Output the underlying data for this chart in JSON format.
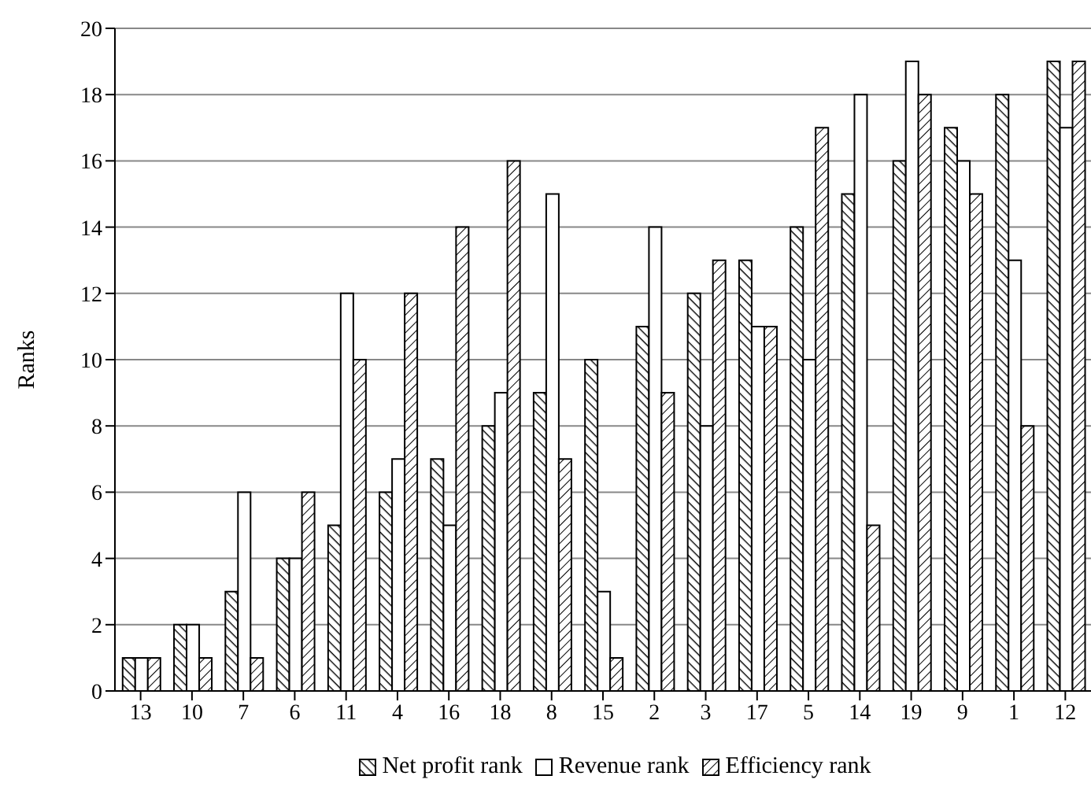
{
  "chart_data": {
    "type": "bar",
    "ylabel": "Ranks",
    "categories": [
      "13",
      "10",
      "7",
      "6",
      "11",
      "4",
      "16",
      "18",
      "8",
      "15",
      "2",
      "3",
      "17",
      "5",
      "14",
      "19",
      "9",
      "1",
      "12"
    ],
    "series": [
      {
        "name": "Net profit rank",
        "color": "#000000",
        "values": [
          1,
          2,
          3,
          4,
          5,
          6,
          7,
          8,
          9,
          10,
          11,
          12,
          13,
          14,
          15,
          16,
          17,
          18,
          19
        ]
      },
      {
        "name": "Revenue rank",
        "color": "#000000",
        "values": [
          1,
          2,
          6,
          4,
          12,
          7,
          5,
          9,
          15,
          3,
          14,
          8,
          11,
          10,
          18,
          19,
          16,
          13,
          17
        ]
      },
      {
        "name": "Efficiency rank",
        "color": "#000000",
        "values": [
          1,
          1,
          1,
          6,
          10,
          12,
          14,
          16,
          7,
          1,
          9,
          13,
          11,
          17,
          5,
          18,
          15,
          8,
          19
        ]
      }
    ],
    "ylim": [
      0,
      20
    ],
    "yticks": [
      0,
      2,
      4,
      6,
      8,
      10,
      12,
      14,
      16,
      18,
      20
    ],
    "grid": "y",
    "legend": "bottom"
  }
}
